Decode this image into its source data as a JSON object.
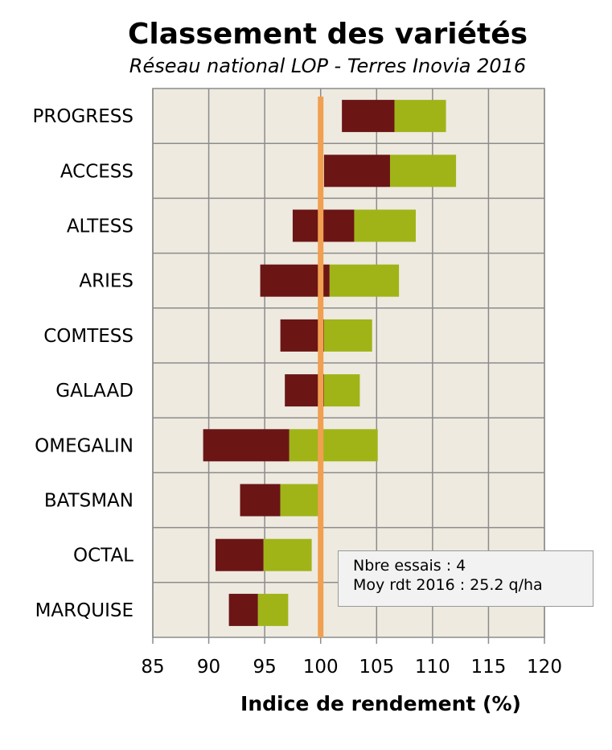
{
  "chart_data": {
    "type": "bar",
    "title": "Classement des variétés",
    "subtitle": "Réseau national LOP - Terres Inovia 2016",
    "xlabel": "Indice de rendement (%)",
    "xlim": [
      85,
      120
    ],
    "xticks": [
      "85",
      "90",
      "95",
      "100",
      "105",
      "110",
      "115",
      "120"
    ],
    "reference_line": 100,
    "grid": true,
    "categories": [
      "PROGRESS",
      "ACCESS",
      "ALTESS",
      "ARIES",
      "COMTESS",
      "GALAAD",
      "OMEGALIN",
      "BATSMAN",
      "OCTAL",
      "MARQUISE"
    ],
    "series": [
      {
        "color": "#6b1515",
        "start": [
          101.9,
          100.3,
          97.5,
          94.6,
          96.4,
          96.8,
          89.5,
          92.8,
          90.6,
          91.8
        ],
        "end": [
          106.6,
          106.2,
          103.0,
          100.8,
          100.3,
          100.3,
          97.2,
          96.4,
          94.9,
          94.4
        ]
      },
      {
        "color": "#a0b418",
        "start": [
          106.6,
          106.2,
          103.0,
          100.8,
          100.3,
          100.3,
          97.2,
          96.4,
          94.9,
          94.4
        ],
        "end": [
          111.2,
          112.1,
          108.5,
          107.0,
          104.6,
          103.5,
          105.1,
          99.9,
          99.2,
          97.1
        ]
      }
    ],
    "colors": {
      "background": "#eeeae0",
      "grid": "#8c8c8c",
      "reference": "#f0a050"
    }
  },
  "info_box": {
    "line1": "Nbre essais : 4",
    "line2": "Moy rdt 2016 : 25.2 q/ha"
  }
}
